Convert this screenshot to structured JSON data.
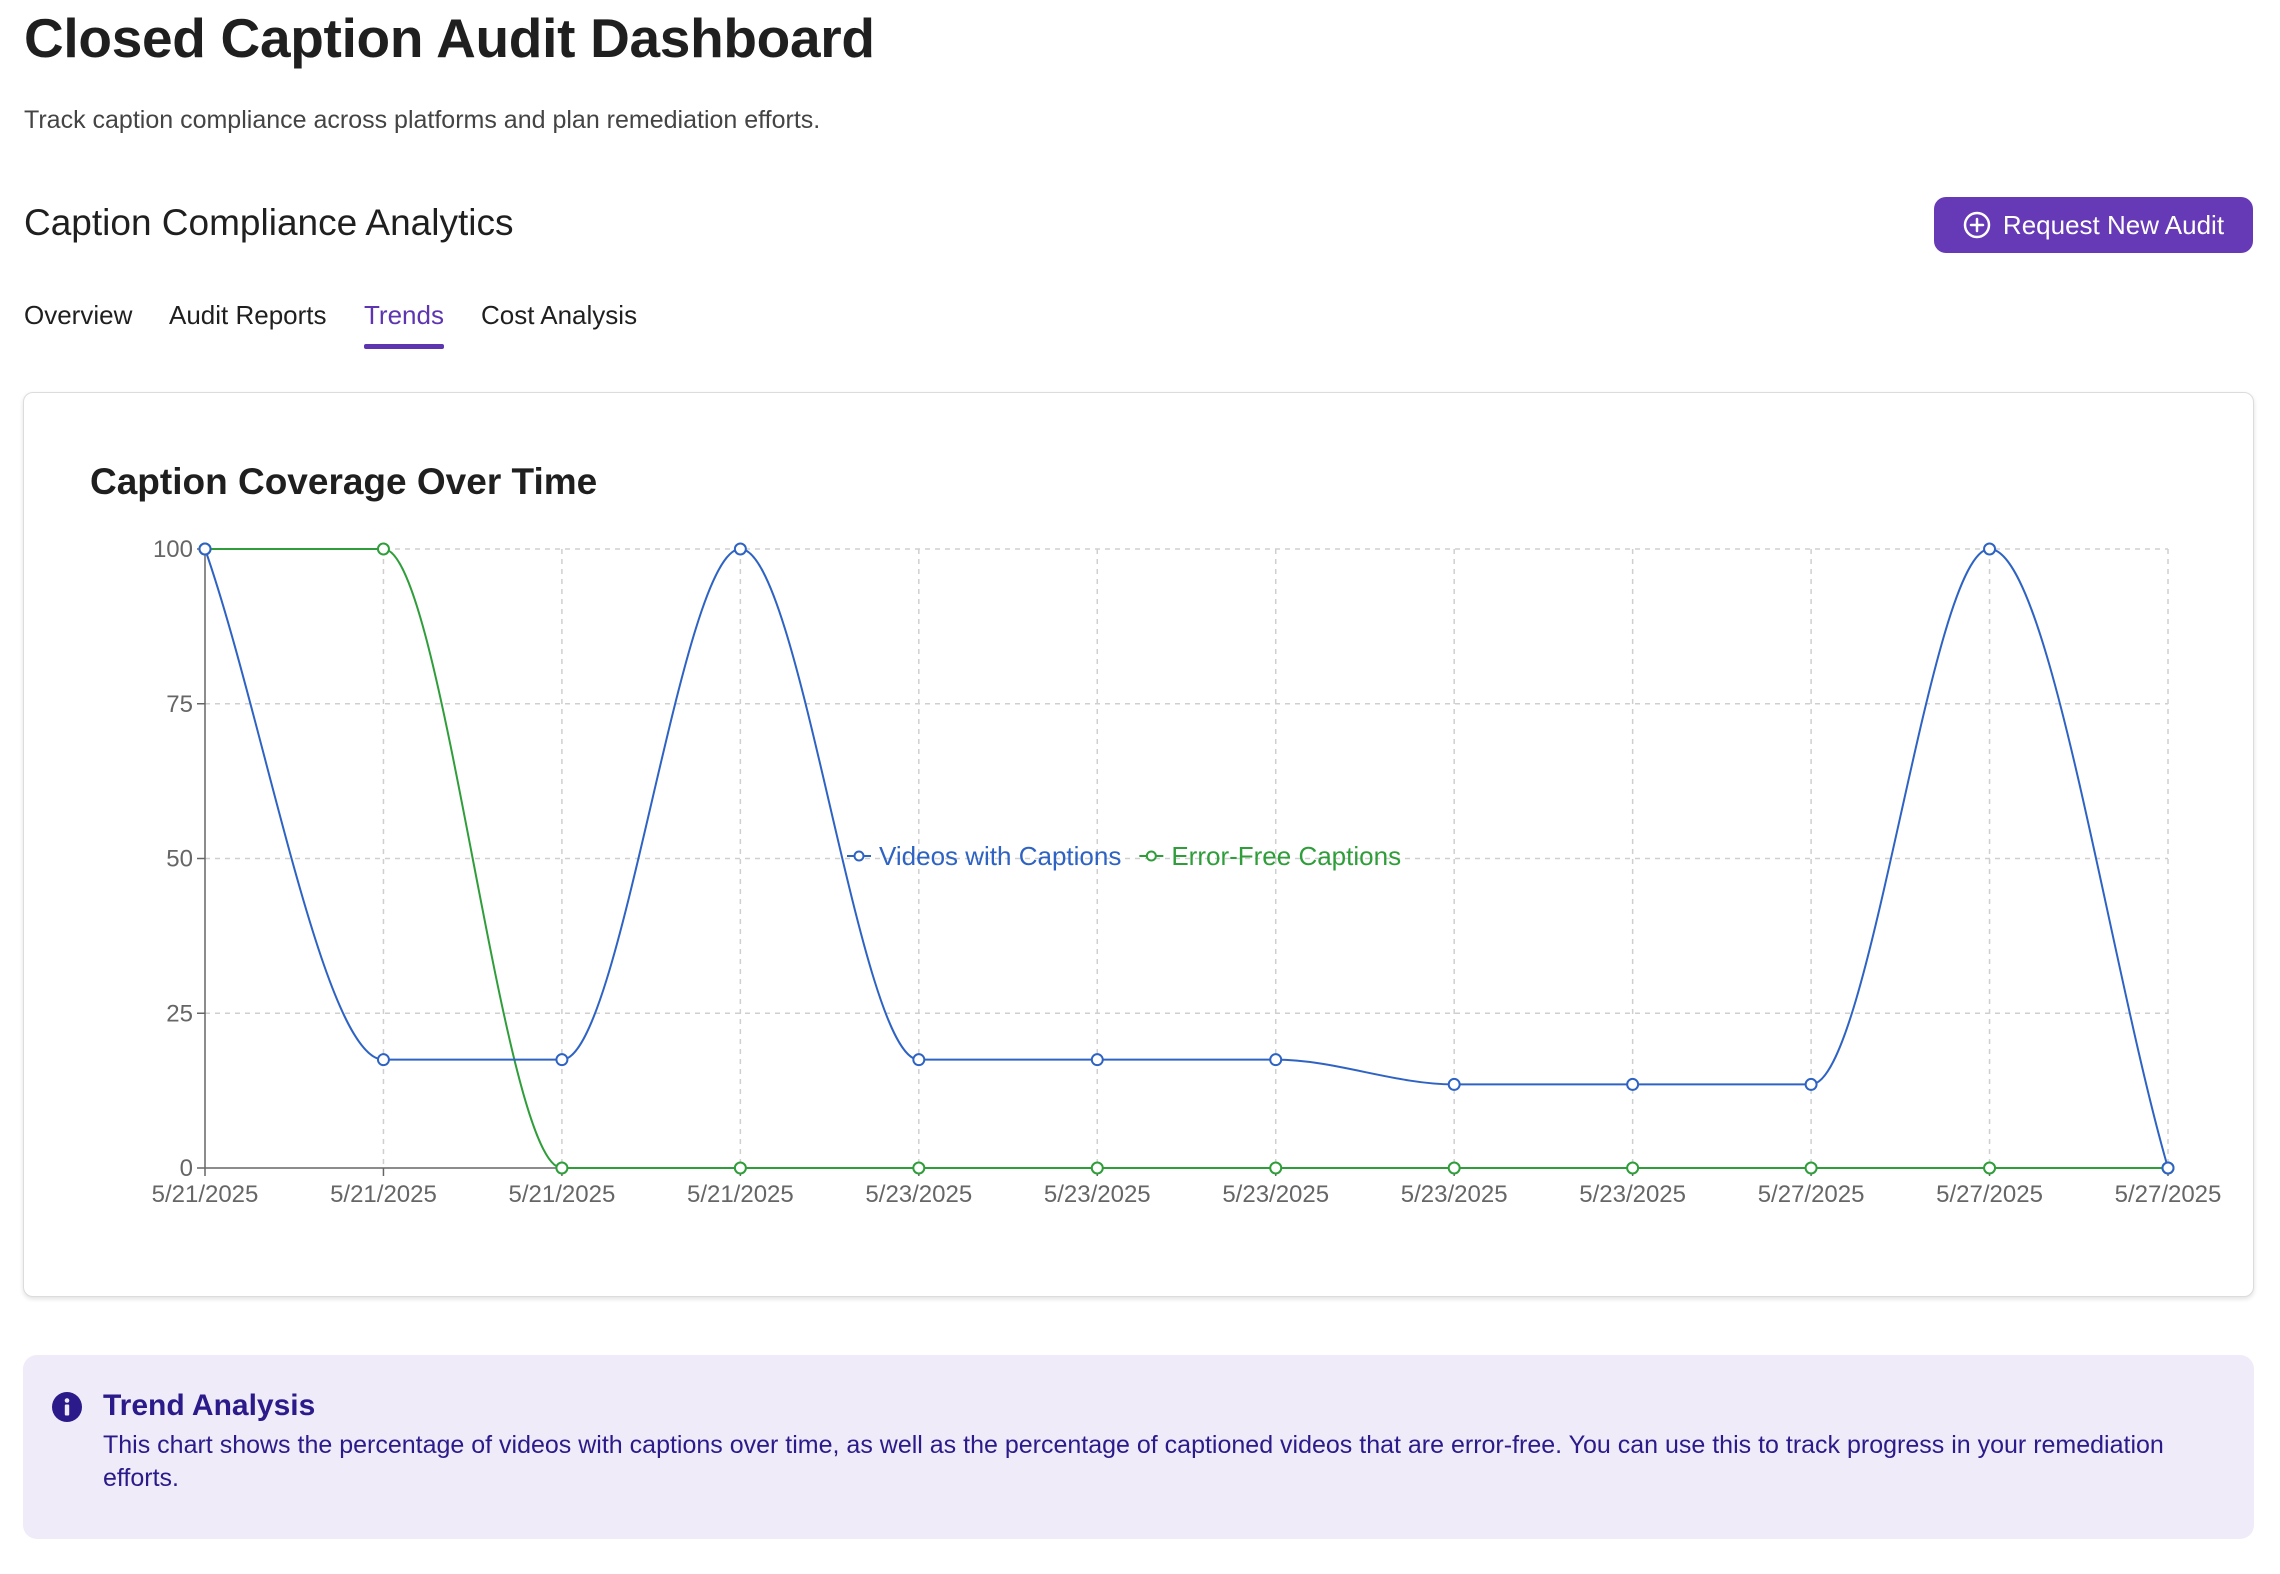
{
  "header": {
    "title": "Closed Caption Audit Dashboard",
    "subtitle": "Track caption compliance across platforms and plan remediation efforts."
  },
  "analytics": {
    "section_title": "Caption Compliance Analytics",
    "request_button_label": "Request New Audit",
    "request_button_icon": "plus-circle-icon",
    "accent_color": "#6639b7"
  },
  "tabs": [
    {
      "label": "Overview",
      "active": false
    },
    {
      "label": "Audit Reports",
      "active": false
    },
    {
      "label": "Trends",
      "active": true
    },
    {
      "label": "Cost Analysis",
      "active": false
    }
  ],
  "chart_data": {
    "type": "line",
    "title": "Caption Coverage Over Time",
    "xlabel": "",
    "ylabel": "",
    "categories": [
      "5/21/2025",
      "5/21/2025",
      "5/21/2025",
      "5/21/2025",
      "5/23/2025",
      "5/23/2025",
      "5/23/2025",
      "5/23/2025",
      "5/23/2025",
      "5/27/2025",
      "5/27/2025",
      "5/27/2025"
    ],
    "ylim": [
      0,
      100
    ],
    "yticks": [
      0,
      25,
      50,
      75,
      100
    ],
    "grid": true,
    "legend_position": "bottom",
    "series": [
      {
        "name": "Videos with Captions",
        "color": "#2e63c4",
        "values": [
          100,
          17.5,
          17.5,
          100,
          17.5,
          17.5,
          17.5,
          13.5,
          13.5,
          13.5,
          100,
          0
        ]
      },
      {
        "name": "Error-Free Captions",
        "color": "#2f9e3a",
        "values": [
          100,
          100,
          0,
          0,
          0,
          0,
          0,
          0,
          0,
          0,
          0,
          0
        ]
      }
    ]
  },
  "info": {
    "icon": "info-icon",
    "title": "Trend Analysis",
    "text": "This chart shows the percentage of videos with captions over time, as well as the percentage of captioned videos that are error-free. You can use this to track progress in your remediation efforts."
  }
}
